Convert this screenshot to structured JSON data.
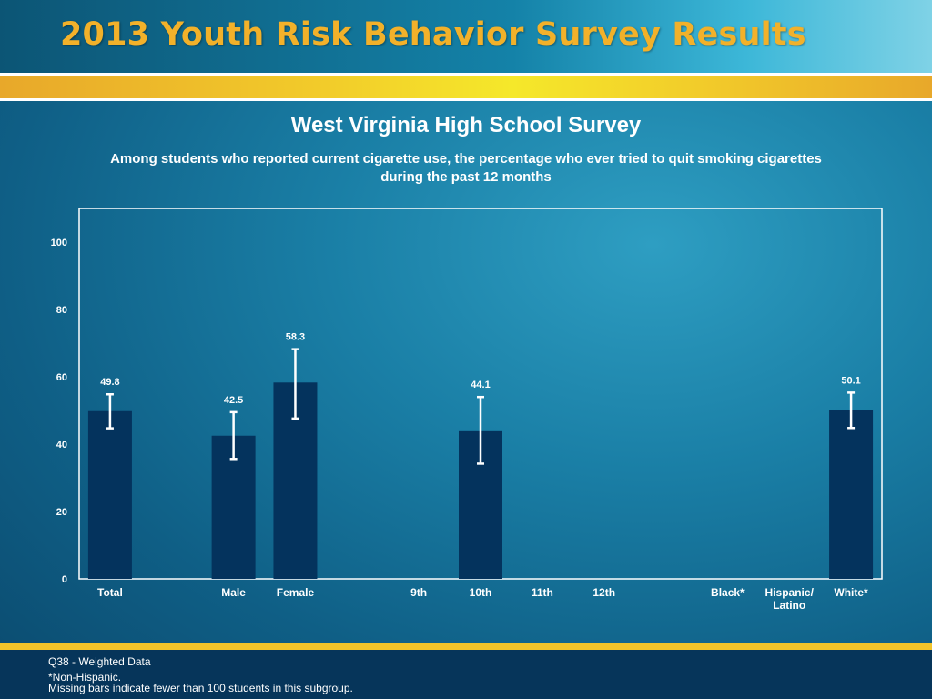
{
  "banner": {
    "title": "2013 Youth Risk Behavior Survey Results"
  },
  "chart_data": {
    "type": "bar",
    "title": "West Virginia High School Survey",
    "subtitle": "Among students who reported current cigarette use, the percentage who ever tried to quit smoking cigarettes during the past 12 months",
    "ylim": [
      0,
      110
    ],
    "yticks": [
      0,
      20,
      40,
      60,
      80,
      100
    ],
    "categories": [
      "Total",
      "",
      "Male",
      "Female",
      "",
      "9th",
      "10th",
      "11th",
      "12th",
      "",
      "Black*",
      "Hispanic/ Latino",
      "White*"
    ],
    "values": [
      49.8,
      null,
      42.5,
      58.3,
      null,
      null,
      44.1,
      null,
      null,
      null,
      null,
      null,
      50.1
    ],
    "value_labels": [
      "49.8",
      "",
      "42.5",
      "58.3",
      "",
      "",
      "44.1",
      "",
      "",
      "",
      "",
      "",
      "50.1"
    ],
    "error_low": [
      44.7,
      null,
      35.6,
      47.6,
      null,
      null,
      34.2,
      null,
      null,
      null,
      null,
      null,
      44.8
    ],
    "error_high": [
      54.8,
      null,
      49.5,
      68.2,
      null,
      null,
      54.0,
      null,
      null,
      null,
      null,
      null,
      55.3
    ],
    "colors": {
      "bar": "#04335d",
      "error": "#ffffff",
      "axis": "#ffffff",
      "text": "#ffffff"
    }
  },
  "footer": {
    "line1": "Q38 - Weighted Data",
    "line2": "*Non-Hispanic.",
    "line3": "Missing bars indicate fewer than 100 students in this subgroup."
  }
}
